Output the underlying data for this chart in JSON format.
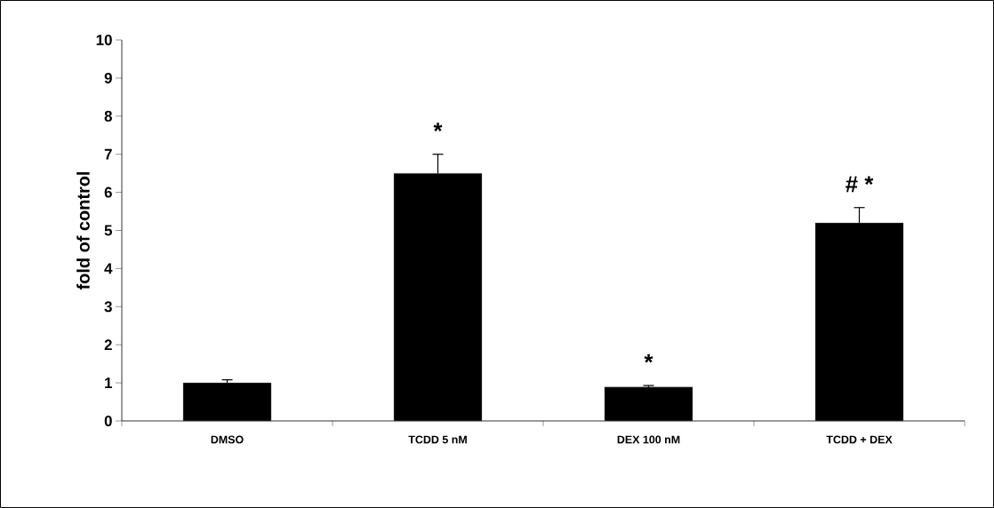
{
  "chart_data": {
    "type": "bar",
    "ylabel": "fold of control",
    "categories": [
      "DMSO",
      "TCDD 5 nM",
      "DEX 100 nM",
      "TCDD + DEX"
    ],
    "values": [
      1.0,
      6.5,
      0.89,
      5.2
    ],
    "errors": [
      0.08,
      0.5,
      0.04,
      0.4
    ],
    "color": "#000000",
    "ylim": [
      0,
      10
    ],
    "yticks": [
      0,
      1,
      2,
      3,
      4,
      5,
      6,
      7,
      8,
      9,
      10
    ],
    "grid": false,
    "annotations": [
      "*",
      "*",
      "#   *"
    ]
  }
}
